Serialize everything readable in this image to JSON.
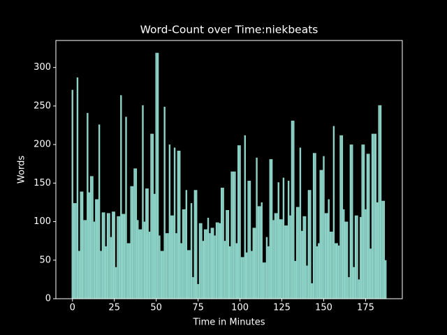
{
  "chart_data": {
    "type": "bar",
    "title": "Word-Count over Time:niekbeats",
    "xlabel": "Time in Minutes",
    "ylabel": "Words",
    "color": "#8dd3c7",
    "x": [
      0,
      1,
      2,
      3,
      4,
      5,
      6,
      7,
      8,
      9,
      10,
      11,
      12,
      13,
      14,
      15,
      16,
      17,
      18,
      19,
      20,
      21,
      22,
      23,
      24,
      25,
      26,
      27,
      28,
      29,
      30,
      31,
      32,
      33,
      34,
      35,
      36,
      37,
      38,
      39,
      40,
      41,
      42,
      43,
      44,
      45,
      46,
      47,
      48,
      49,
      50,
      51,
      52,
      53,
      54,
      55,
      56,
      57,
      58,
      59,
      60,
      61,
      62,
      63,
      64,
      65,
      66,
      67,
      68,
      69,
      70,
      71,
      72,
      73,
      74,
      75,
      76,
      77,
      78,
      79,
      80,
      81,
      82,
      83,
      84,
      85,
      86,
      87,
      88,
      89,
      90,
      91,
      92,
      93,
      94,
      95,
      96,
      97,
      98,
      99,
      100,
      101,
      102,
      103,
      104,
      105,
      106,
      107,
      108,
      109,
      110,
      111,
      112,
      113,
      114,
      115,
      116,
      117,
      118,
      119,
      120,
      121,
      122,
      123,
      124,
      125,
      126,
      127,
      128,
      129,
      130,
      131,
      132,
      133,
      134,
      135,
      136,
      137,
      138,
      139,
      140,
      141,
      142,
      143,
      144,
      145,
      146,
      147,
      148,
      149,
      150,
      151,
      152,
      153,
      154,
      155,
      156,
      157,
      158,
      159,
      160,
      161,
      162,
      163,
      164,
      165,
      166,
      167,
      168,
      169,
      170,
      171,
      172,
      173,
      174,
      175,
      176,
      177,
      178,
      179,
      180,
      181,
      182,
      183,
      184,
      185,
      186,
      187
    ],
    "values": [
      271,
      124,
      124,
      287,
      62,
      139,
      139,
      102,
      102,
      241,
      138,
      159,
      159,
      100,
      129,
      129,
      226,
      62,
      112,
      112,
      68,
      111,
      111,
      80,
      113,
      113,
      41,
      107,
      107,
      264,
      110,
      110,
      236,
      72,
      72,
      146,
      146,
      169,
      169,
      102,
      90,
      90,
      251,
      100,
      143,
      143,
      87,
      214,
      214,
      136,
      319,
      319,
      82,
      62,
      62,
      249,
      85,
      85,
      200,
      108,
      108,
      196,
      85,
      192,
      192,
      72,
      116,
      116,
      141,
      63,
      63,
      124,
      28,
      141,
      141,
      19,
      98,
      98,
      75,
      90,
      90,
      105,
      85,
      92,
      92,
      82,
      99,
      99,
      98,
      144,
      144,
      75,
      115,
      115,
      68,
      165,
      165,
      165,
      72,
      199,
      199,
      54,
      54,
      212,
      60,
      153,
      153,
      62,
      92,
      92,
      183,
      120,
      120,
      125,
      47,
      47,
      80,
      68,
      181,
      181,
      102,
      111,
      111,
      151,
      103,
      103,
      157,
      95,
      95,
      153,
      108,
      231,
      231,
      49,
      119,
      119,
      196,
      88,
      107,
      107,
      43,
      141,
      141,
      20,
      189,
      189,
      68,
      72,
      167,
      167,
      185,
      111,
      111,
      129,
      87,
      87,
      224,
      72,
      72,
      69,
      212,
      212,
      116,
      100,
      100,
      28,
      200,
      200,
      41,
      108,
      108,
      25,
      106,
      200,
      200,
      116,
      188,
      188,
      65,
      214,
      214,
      214,
      125,
      251,
      251,
      127,
      127,
      50
    ],
    "xlim": [
      -9.9,
      196.9
    ],
    "xticks": [
      0,
      25,
      50,
      75,
      100,
      125,
      150,
      175
    ],
    "ylim": [
      0,
      335
    ],
    "yticks": [
      0,
      50,
      100,
      150,
      200,
      250,
      300
    ]
  }
}
